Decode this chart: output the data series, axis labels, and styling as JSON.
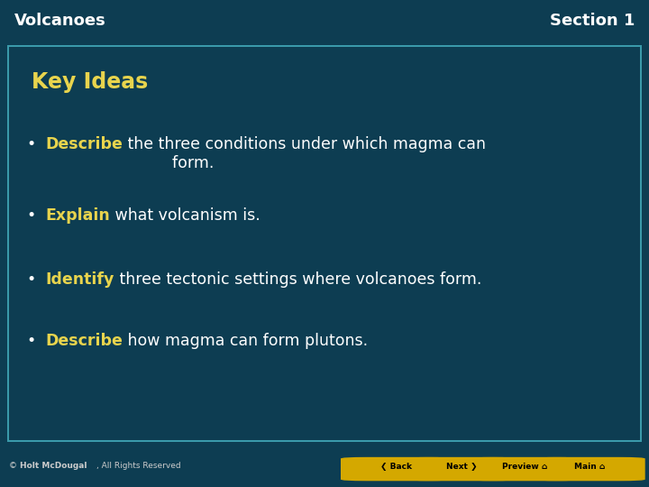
{
  "header_bg": "#0d3d52",
  "content_bg": "#1a7e8f",
  "footer_bg": "#111111",
  "title_left": "Volcanoes",
  "title_right": "Section 1",
  "header_text_color": "#ffffff",
  "key_ideas_label": "Key Ideas",
  "key_ideas_color": "#e8d44d",
  "bullet_keyword_color": "#e8d44d",
  "bullet_text_color": "#ffffff",
  "bullets": [
    {
      "keyword": "Describe",
      "rest": " the three conditions under which magma can\n          form."
    },
    {
      "keyword": "Explain",
      "rest": " what volcanism is."
    },
    {
      "keyword": "Identify",
      "rest": " three tectonic settings where volcanoes form."
    },
    {
      "keyword": "Describe",
      "rest": " how magma can form plutons."
    }
  ],
  "footer_text": "© Holt McDougal, All Rights Reserved",
  "button_labels": [
    "< Back",
    "Next >",
    "Preview",
    "Main"
  ],
  "button_color": "#d4a800",
  "button_text_color": "#000000",
  "content_border_color": "#3a9aaa",
  "fig_width": 7.2,
  "fig_height": 5.4,
  "dpi": 100
}
